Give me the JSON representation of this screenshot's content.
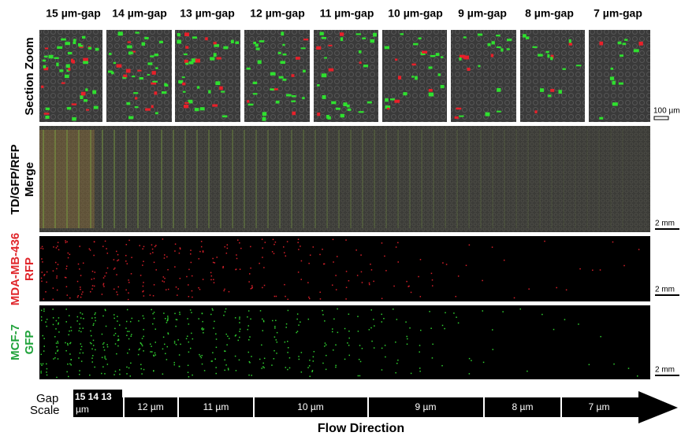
{
  "column_headers": [
    "15 µm-gap",
    "14 µm-gap",
    "13 µm-gap",
    "12 µm-gap",
    "11 µm-gap",
    "10 µm-gap",
    "9 µm-gap",
    "8 µm-gap",
    "7 µm-gap"
  ],
  "rows": [
    {
      "label": [
        "Section Zoom"
      ],
      "scale_bar": "100 µm"
    },
    {
      "label": [
        "TD/GFP/RFP",
        "Merge"
      ],
      "scale_bar": "2 mm"
    },
    {
      "label": [
        "MDA-MB-436",
        "RFP"
      ],
      "scale_bar": "2 mm"
    },
    {
      "label": [
        "MCF-7",
        "GFP"
      ],
      "scale_bar": "2 mm"
    }
  ],
  "gap_scale": {
    "label": [
      "Gap",
      "Scale"
    ],
    "first_segment": [
      "15 14 13",
      "µm"
    ],
    "segments": [
      "12 µm",
      "11 µm",
      "10 µm",
      "9 µm",
      "8 µm",
      "7 µm"
    ]
  },
  "flow_label": "Flow Direction"
}
